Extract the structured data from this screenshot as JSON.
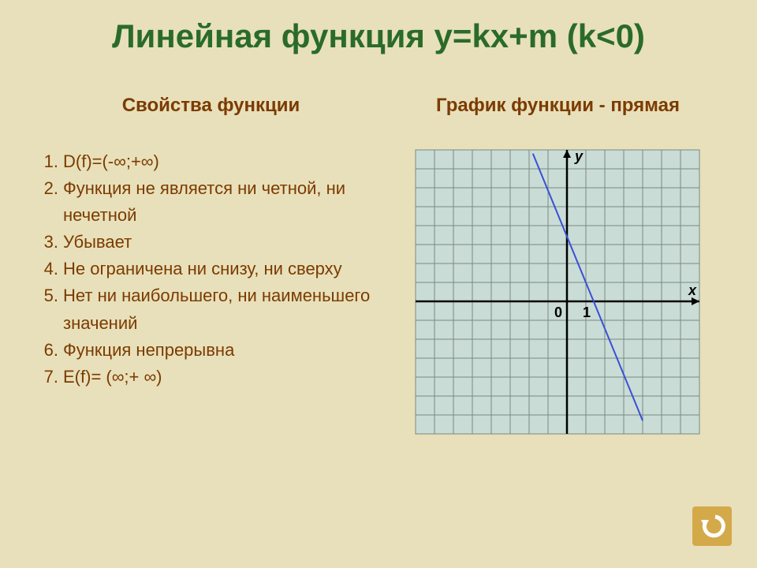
{
  "title": "Линейная функция y=kx+m (k<0)",
  "left": {
    "heading": "Свойства функции",
    "items": [
      "D(f)=(-∞;+∞)",
      "Функция не является ни четной, ни нечетной",
      "Убывает",
      "Не ограничена ни снизу, ни сверху",
      "Нет ни наибольшего, ни наименьшего значений",
      "Функция непрерывна",
      "E(f)= (∞;+ ∞)"
    ]
  },
  "right": {
    "heading_part1": "График функции",
    "heading_part2": " - прямая"
  },
  "graph": {
    "type": "line",
    "viewbox_w": 360,
    "viewbox_h": 380,
    "cell": 24,
    "cols": 15,
    "rows": 15,
    "origin_col": 8,
    "origin_row": 8,
    "bg_color": "#c9dcd5",
    "grid_color": "#7a8a84",
    "axis_color": "#000000",
    "line_color": "#3a4fd8",
    "line_width": 2,
    "line_x1_col": 6.2,
    "line_y1_row": 0.2,
    "line_x2_col": 12,
    "line_y2_row": 14.3,
    "label_y": "y",
    "label_x": "x",
    "label_0": "0",
    "label_1": "1",
    "label_color": "#000000",
    "label_fontsize": 18,
    "label_fontweight": "bold"
  },
  "colors": {
    "page_bg": "#e8e0ba",
    "title": "#2a6b2a",
    "text": "#7b3b00",
    "back_btn_bg": "#d4a94a",
    "back_btn_fg": "#ffffff"
  }
}
